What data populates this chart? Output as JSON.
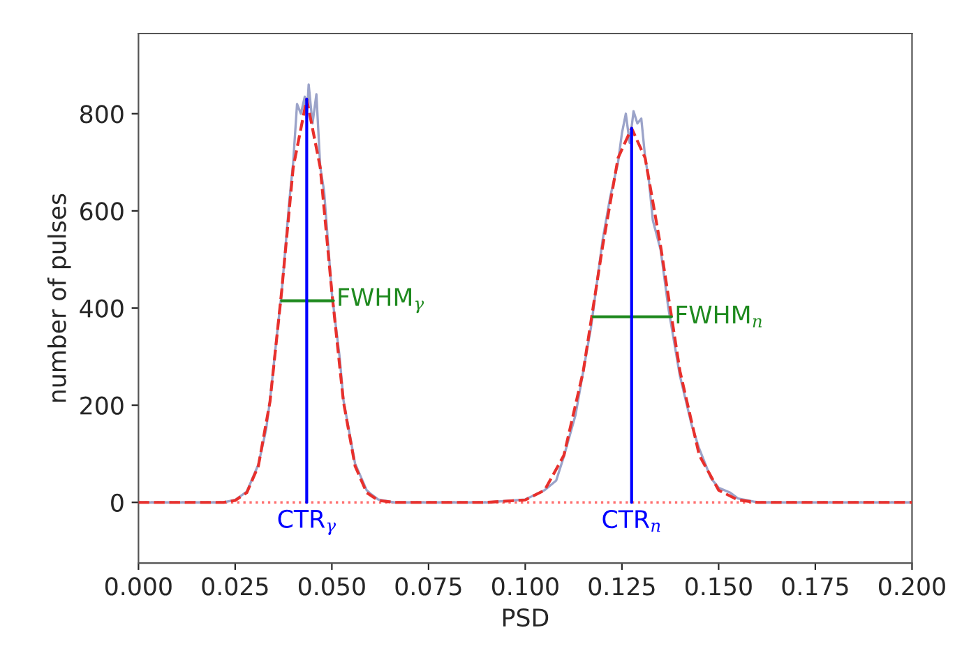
{
  "chart_data": {
    "type": "line",
    "xlabel": "PSD",
    "ylabel": "number of pulses",
    "xlim": [
      0.0,
      0.2
    ],
    "ylim": [
      -125,
      965
    ],
    "xticks": [
      {
        "value": 0.0,
        "label": "0.000"
      },
      {
        "value": 0.025,
        "label": "0.025"
      },
      {
        "value": 0.05,
        "label": "0.050"
      },
      {
        "value": 0.075,
        "label": "0.075"
      },
      {
        "value": 0.1,
        "label": "0.100"
      },
      {
        "value": 0.125,
        "label": "0.125"
      },
      {
        "value": 0.15,
        "label": "0.150"
      },
      {
        "value": 0.175,
        "label": "0.175"
      },
      {
        "value": 0.2,
        "label": "0.200"
      }
    ],
    "yticks": [
      0,
      200,
      400,
      600,
      800
    ],
    "grid": false,
    "legend": false,
    "ref_lines": [
      {
        "axis": "y",
        "value": 0,
        "color": "#ff6f6f",
        "line_style": "dotted"
      }
    ],
    "series": [
      {
        "color": "#9ba3c9",
        "line_style": "solid",
        "x": [
          0.0,
          0.022,
          0.025,
          0.028,
          0.031,
          0.033,
          0.034,
          0.036,
          0.037,
          0.039,
          0.04,
          0.041,
          0.042,
          0.043,
          0.0435,
          0.044,
          0.045,
          0.046,
          0.047,
          0.048,
          0.05,
          0.052,
          0.053,
          0.056,
          0.059,
          0.06,
          0.062,
          0.066,
          0.09,
          0.1,
          0.105,
          0.108,
          0.11,
          0.113,
          0.115,
          0.117,
          0.118,
          0.12,
          0.122,
          0.124,
          0.125,
          0.126,
          0.127,
          0.128,
          0.129,
          0.13,
          0.131,
          0.132,
          0.133,
          0.135,
          0.137,
          0.14,
          0.143,
          0.145,
          0.148,
          0.15,
          0.153,
          0.155,
          0.16,
          0.2
        ],
        "values": [
          0,
          0,
          5,
          22,
          78,
          150,
          210,
          360,
          430,
          620,
          700,
          820,
          800,
          835,
          790,
          860,
          780,
          840,
          690,
          640,
          430,
          300,
          210,
          80,
          25,
          18,
          6,
          0,
          0,
          6,
          25,
          45,
          95,
          180,
          270,
          360,
          420,
          540,
          630,
          700,
          760,
          800,
          740,
          805,
          780,
          790,
          710,
          660,
          580,
          520,
          400,
          260,
          160,
          110,
          50,
          30,
          20,
          8,
          0,
          0
        ]
      },
      {
        "color": "#e8302c",
        "line_style": "dashed",
        "x": [
          0.0,
          0.022,
          0.025,
          0.028,
          0.031,
          0.034,
          0.037,
          0.04,
          0.0435,
          0.047,
          0.05,
          0.053,
          0.056,
          0.059,
          0.062,
          0.066,
          0.09,
          0.1,
          0.105,
          0.11,
          0.115,
          0.12,
          0.124,
          0.1275,
          0.131,
          0.135,
          0.14,
          0.145,
          0.15,
          0.155,
          0.16,
          0.2
        ],
        "values": [
          0,
          0,
          4,
          20,
          75,
          207,
          433,
          689,
          830,
          689,
          433,
          207,
          75,
          20,
          4,
          0,
          0,
          5,
          25,
          97,
          270,
          527,
          709,
          770,
          709,
          527,
          270,
          97,
          25,
          5,
          0,
          0
        ]
      },
      {
        "name": "FWHM$_{γ}$",
        "color": "#1f8a1f",
        "line_style": "solid",
        "x": [
          0.037,
          0.0504
        ],
        "values": [
          415,
          415
        ]
      },
      {
        "name": "FWHM$_{n}$",
        "color": "#1f8a1f",
        "line_style": "solid",
        "x": [
          0.1176,
          0.1378
        ],
        "values": [
          382,
          382
        ]
      },
      {
        "name": "CTR$_{γ}$",
        "color": "#0000ff",
        "line_style": "solid",
        "x": [
          0.0435,
          0.0435
        ],
        "values": [
          0,
          830
        ]
      },
      {
        "name": "CTR$_{n}$",
        "color": "#0000ff",
        "line_style": "solid",
        "x": [
          0.1275,
          0.1275
        ],
        "values": [
          0,
          770
        ]
      }
    ]
  }
}
